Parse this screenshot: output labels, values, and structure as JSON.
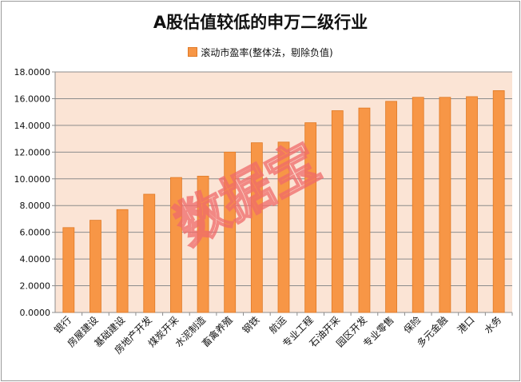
{
  "watermark": "数据宝",
  "chart_data": {
    "type": "bar",
    "title": "A股估值较低的申万二级行业",
    "legend_position": "top",
    "grid": true,
    "ylim": [
      0,
      18
    ],
    "yticks": [
      "0.0000",
      "2.0000",
      "4.0000",
      "6.0000",
      "8.0000",
      "10.0000",
      "12.0000",
      "14.0000",
      "16.0000",
      "18.0000"
    ],
    "categories": [
      "银行",
      "房屋建设",
      "基础建设",
      "房地产开发",
      "煤炭开采",
      "水泥制造",
      "畜禽养殖",
      "钢铁",
      "航运",
      "专业工程",
      "石油开采",
      "园区开发",
      "专业零售",
      "保险",
      "多元金融",
      "港口",
      "水务"
    ],
    "series": [
      {
        "name": "滚动市盈率(整体法，剔除负值)",
        "color": "#f79646",
        "values": [
          6.35,
          6.9,
          7.7,
          8.85,
          10.1,
          10.2,
          12.0,
          12.7,
          12.75,
          14.2,
          15.1,
          15.3,
          15.8,
          16.1,
          16.1,
          16.15,
          16.6
        ]
      }
    ]
  }
}
